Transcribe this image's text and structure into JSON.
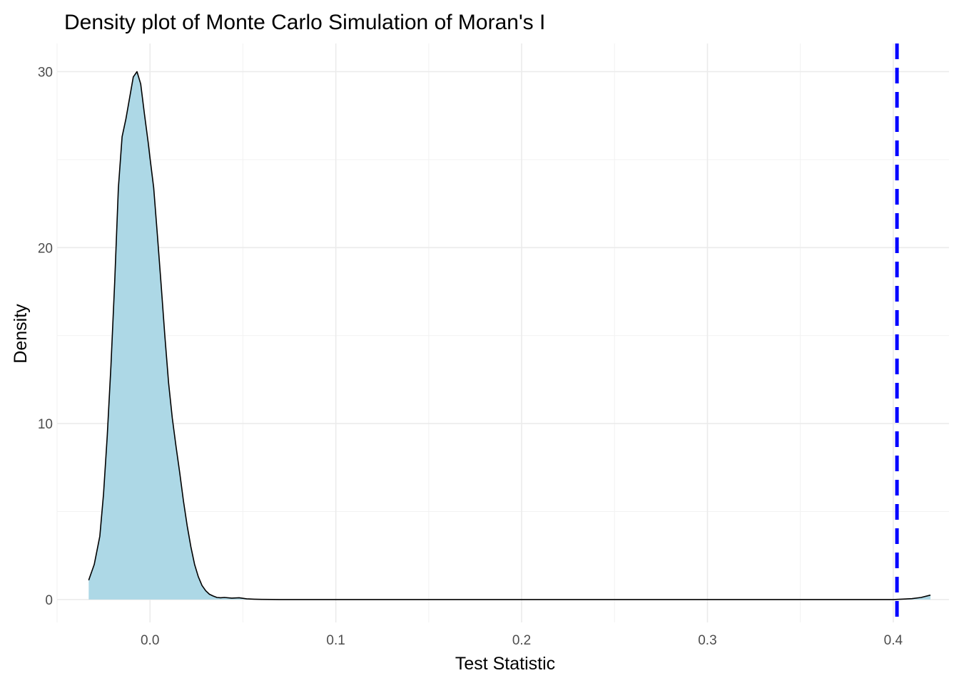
{
  "chart_data": {
    "type": "area",
    "title": "Density plot of Monte Carlo Simulation of Moran's I",
    "xlabel": "Test Statistic",
    "ylabel": "Density",
    "xlim": [
      -0.05,
      0.43
    ],
    "ylim": [
      -1.3,
      31.6
    ],
    "x_ticks": [
      0.0,
      0.1,
      0.2,
      0.3,
      0.4
    ],
    "x_tick_labels": [
      "0.0",
      "0.1",
      "0.2",
      "0.3",
      "0.4"
    ],
    "y_ticks": [
      0,
      10,
      20,
      30
    ],
    "y_tick_labels": [
      "0",
      "10",
      "20",
      "30"
    ],
    "grid": true,
    "fill_color": "#add8e6",
    "line_color": "#000000",
    "reference_line": {
      "x": 0.402,
      "color": "#0000ff",
      "style": "dashed"
    },
    "series": [
      {
        "x": [
          -0.033,
          -0.03,
          -0.027,
          -0.025,
          -0.023,
          -0.021,
          -0.019,
          -0.017,
          -0.015,
          -0.013,
          -0.011,
          -0.009,
          -0.007,
          -0.005,
          -0.003,
          -0.001,
          0.0,
          0.002,
          0.004,
          0.006,
          0.008,
          0.01,
          0.012,
          0.014,
          0.016,
          0.018,
          0.02,
          0.022,
          0.024,
          0.026,
          0.028,
          0.03,
          0.032,
          0.034,
          0.036,
          0.038,
          0.04,
          0.044,
          0.048,
          0.052,
          0.056,
          0.06,
          0.07,
          0.1,
          0.15,
          0.2,
          0.25,
          0.3,
          0.35,
          0.38,
          0.4,
          0.41,
          0.415,
          0.42
        ],
        "y": [
          1.1,
          2.0,
          3.6,
          6.0,
          9.3,
          13.3,
          18.0,
          23.4,
          26.3,
          27.3,
          28.5,
          29.7,
          30.0,
          29.3,
          27.6,
          26.0,
          25.1,
          23.4,
          20.7,
          17.9,
          15.0,
          12.3,
          10.3,
          8.7,
          7.2,
          5.6,
          4.2,
          3.0,
          2.0,
          1.3,
          0.8,
          0.5,
          0.3,
          0.2,
          0.12,
          0.1,
          0.12,
          0.08,
          0.1,
          0.04,
          0.02,
          0.01,
          0.0,
          0.0,
          0.0,
          0.0,
          0.0,
          0.0,
          0.0,
          0.0,
          0.0,
          0.05,
          0.12,
          0.25
        ]
      }
    ]
  }
}
